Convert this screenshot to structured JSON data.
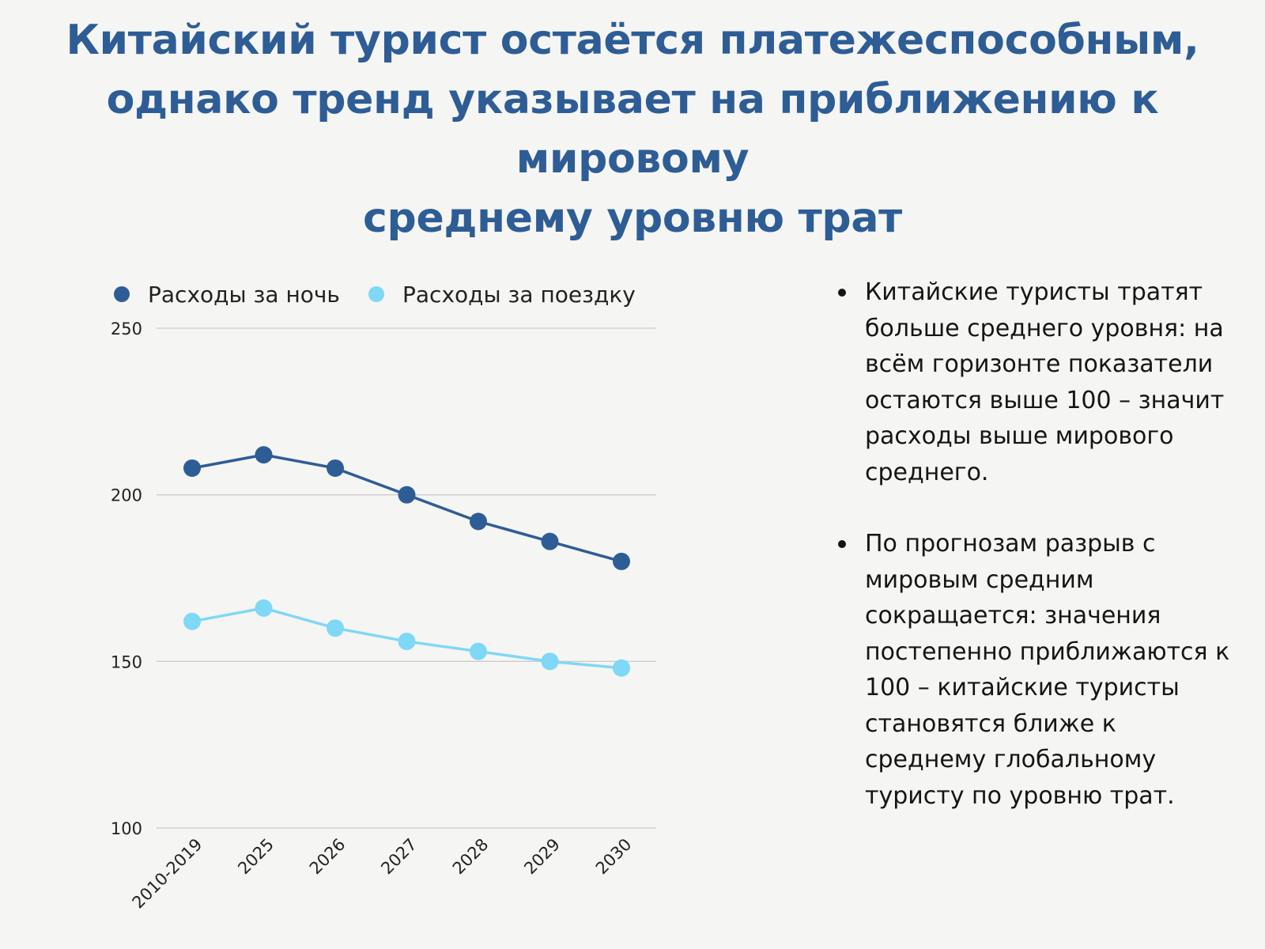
{
  "title": {
    "lines": [
      "Китайский турист остаётся платежеспособным,",
      "однако тренд указывает на приближению к мировому",
      "среднему уровню трат"
    ]
  },
  "bullets": [
    "Китайские туристы тратят больше среднего уровня: на всём горизонте показатели остаются выше 100 – значит расходы выше мирового среднего.",
    "По прогнозам разрыв с мировым средним сокращается: значения постепенно приближаются к 100 – китайские туристы становятся ближе к среднему глобальному туристу по уровню трат."
  ],
  "chart_data": {
    "type": "line",
    "categories": [
      "2010-2019",
      "2025",
      "2026",
      "2027",
      "2028",
      "2029",
      "2030"
    ],
    "series": [
      {
        "name": "Расходы за ночь",
        "color": "#2e5d96",
        "values": [
          208,
          212,
          208,
          200,
          192,
          186,
          180
        ]
      },
      {
        "name": "Расходы за поездку",
        "color": "#7fd8f5",
        "values": [
          162,
          166,
          160,
          156,
          153,
          150,
          148
        ]
      }
    ],
    "yticks": [
      100,
      150,
      200,
      250
    ],
    "ylim": [
      100,
      250
    ],
    "grid": true,
    "legend_position": "top-left"
  }
}
